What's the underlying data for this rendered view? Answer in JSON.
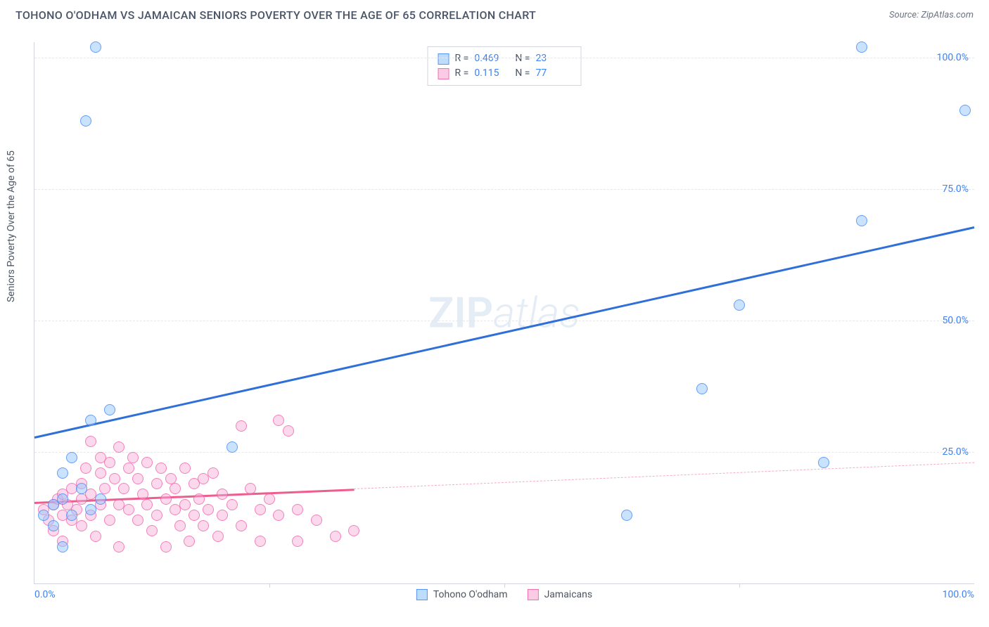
{
  "header": {
    "title": "TOHONO O'ODHAM VS JAMAICAN SENIORS POVERTY OVER THE AGE OF 65 CORRELATION CHART",
    "source_label": "Source: ",
    "source_name": "ZipAtlas.com"
  },
  "chart": {
    "type": "scatter",
    "ylabel": "Seniors Poverty Over the Age of 65",
    "watermark_bold": "ZIP",
    "watermark_rest": "atlas",
    "background_color": "#ffffff",
    "grid_color": "#e5e7eb",
    "axis_color": "#d1d5db",
    "text_color": "#4b5563",
    "tick_color": "#3b82f6",
    "xlim": [
      0,
      100
    ],
    "ylim": [
      0,
      103
    ],
    "ytick_step": 25,
    "yticks": [
      {
        "v": 25,
        "label": "25.0%"
      },
      {
        "v": 50,
        "label": "50.0%"
      },
      {
        "v": 75,
        "label": "75.0%"
      },
      {
        "v": 100,
        "label": "100.0%"
      }
    ],
    "xticks": [
      {
        "v": 0,
        "label": "0.0%"
      },
      {
        "v": 25,
        "label": ""
      },
      {
        "v": 50,
        "label": ""
      },
      {
        "v": 75,
        "label": ""
      },
      {
        "v": 100,
        "label": "100.0%"
      }
    ],
    "marker_size": 14,
    "series": [
      {
        "name": "Tohono O'odham",
        "key": "blue",
        "color_fill": "rgba(147,197,253,0.5)",
        "color_stroke": "rgba(59,130,246,0.7)",
        "R": "0.469",
        "N": "23",
        "trend": {
          "x1": 0,
          "y1": 28,
          "x2": 100,
          "y2": 68,
          "color": "#2f6fd8"
        },
        "points": [
          {
            "x": 6.5,
            "y": 102
          },
          {
            "x": 5.5,
            "y": 88
          },
          {
            "x": 88,
            "y": 102
          },
          {
            "x": 99,
            "y": 90
          },
          {
            "x": 88,
            "y": 69
          },
          {
            "x": 75,
            "y": 53
          },
          {
            "x": 71,
            "y": 37
          },
          {
            "x": 84,
            "y": 23
          },
          {
            "x": 63,
            "y": 13
          },
          {
            "x": 6,
            "y": 31
          },
          {
            "x": 3,
            "y": 21
          },
          {
            "x": 4,
            "y": 24
          },
          {
            "x": 8,
            "y": 33
          },
          {
            "x": 21,
            "y": 26
          },
          {
            "x": 7,
            "y": 16
          },
          {
            "x": 3,
            "y": 16
          },
          {
            "x": 2,
            "y": 15
          },
          {
            "x": 4,
            "y": 13
          },
          {
            "x": 6,
            "y": 14
          },
          {
            "x": 2,
            "y": 11
          },
          {
            "x": 3,
            "y": 7
          },
          {
            "x": 1,
            "y": 13
          },
          {
            "x": 5,
            "y": 18
          }
        ]
      },
      {
        "name": "Jamaicans",
        "key": "pink",
        "color_fill": "rgba(249,168,212,0.45)",
        "color_stroke": "rgba(236,72,153,0.6)",
        "R": "0.115",
        "N": "77",
        "trend": {
          "x1": 0,
          "y1": 15.5,
          "x2": 34,
          "y2": 18,
          "color": "#ed5e8f",
          "ext_x2": 100,
          "ext_y2": 23
        },
        "points": [
          {
            "x": 1,
            "y": 14
          },
          {
            "x": 1.5,
            "y": 12
          },
          {
            "x": 2,
            "y": 15
          },
          {
            "x": 2,
            "y": 10
          },
          {
            "x": 2.5,
            "y": 16
          },
          {
            "x": 3,
            "y": 13
          },
          {
            "x": 3,
            "y": 17
          },
          {
            "x": 3,
            "y": 8
          },
          {
            "x": 3.5,
            "y": 15
          },
          {
            "x": 4,
            "y": 18
          },
          {
            "x": 4,
            "y": 12
          },
          {
            "x": 4.5,
            "y": 14
          },
          {
            "x": 5,
            "y": 19
          },
          {
            "x": 5,
            "y": 16
          },
          {
            "x": 5,
            "y": 11
          },
          {
            "x": 5.5,
            "y": 22
          },
          {
            "x": 6,
            "y": 27
          },
          {
            "x": 6,
            "y": 17
          },
          {
            "x": 6,
            "y": 13
          },
          {
            "x": 6.5,
            "y": 9
          },
          {
            "x": 7,
            "y": 21
          },
          {
            "x": 7,
            "y": 24
          },
          {
            "x": 7,
            "y": 15
          },
          {
            "x": 7.5,
            "y": 18
          },
          {
            "x": 8,
            "y": 12
          },
          {
            "x": 8,
            "y": 23
          },
          {
            "x": 8.5,
            "y": 20
          },
          {
            "x": 9,
            "y": 15
          },
          {
            "x": 9,
            "y": 26
          },
          {
            "x": 9,
            "y": 7
          },
          {
            "x": 9.5,
            "y": 18
          },
          {
            "x": 10,
            "y": 22
          },
          {
            "x": 10,
            "y": 14
          },
          {
            "x": 10.5,
            "y": 24
          },
          {
            "x": 11,
            "y": 12
          },
          {
            "x": 11,
            "y": 20
          },
          {
            "x": 11.5,
            "y": 17
          },
          {
            "x": 12,
            "y": 15
          },
          {
            "x": 12,
            "y": 23
          },
          {
            "x": 12.5,
            "y": 10
          },
          {
            "x": 13,
            "y": 19
          },
          {
            "x": 13,
            "y": 13
          },
          {
            "x": 13.5,
            "y": 22
          },
          {
            "x": 14,
            "y": 16
          },
          {
            "x": 14,
            "y": 7
          },
          {
            "x": 14.5,
            "y": 20
          },
          {
            "x": 15,
            "y": 14
          },
          {
            "x": 15,
            "y": 18
          },
          {
            "x": 15.5,
            "y": 11
          },
          {
            "x": 16,
            "y": 22
          },
          {
            "x": 16,
            "y": 15
          },
          {
            "x": 16.5,
            "y": 8
          },
          {
            "x": 17,
            "y": 19
          },
          {
            "x": 17,
            "y": 13
          },
          {
            "x": 17.5,
            "y": 16
          },
          {
            "x": 18,
            "y": 11
          },
          {
            "x": 18,
            "y": 20
          },
          {
            "x": 18.5,
            "y": 14
          },
          {
            "x": 19,
            "y": 21
          },
          {
            "x": 19.5,
            "y": 9
          },
          {
            "x": 20,
            "y": 17
          },
          {
            "x": 20,
            "y": 13
          },
          {
            "x": 21,
            "y": 15
          },
          {
            "x": 22,
            "y": 30
          },
          {
            "x": 22,
            "y": 11
          },
          {
            "x": 23,
            "y": 18
          },
          {
            "x": 24,
            "y": 14
          },
          {
            "x": 24,
            "y": 8
          },
          {
            "x": 25,
            "y": 16
          },
          {
            "x": 26,
            "y": 13
          },
          {
            "x": 26,
            "y": 31
          },
          {
            "x": 27,
            "y": 29
          },
          {
            "x": 28,
            "y": 14
          },
          {
            "x": 28,
            "y": 8
          },
          {
            "x": 30,
            "y": 12
          },
          {
            "x": 32,
            "y": 9
          },
          {
            "x": 34,
            "y": 10
          }
        ]
      }
    ],
    "legend": {
      "series1": "Tohono O'odham",
      "series2": "Jamaicans"
    },
    "stats_labels": {
      "R": "R =",
      "N": "N ="
    }
  }
}
